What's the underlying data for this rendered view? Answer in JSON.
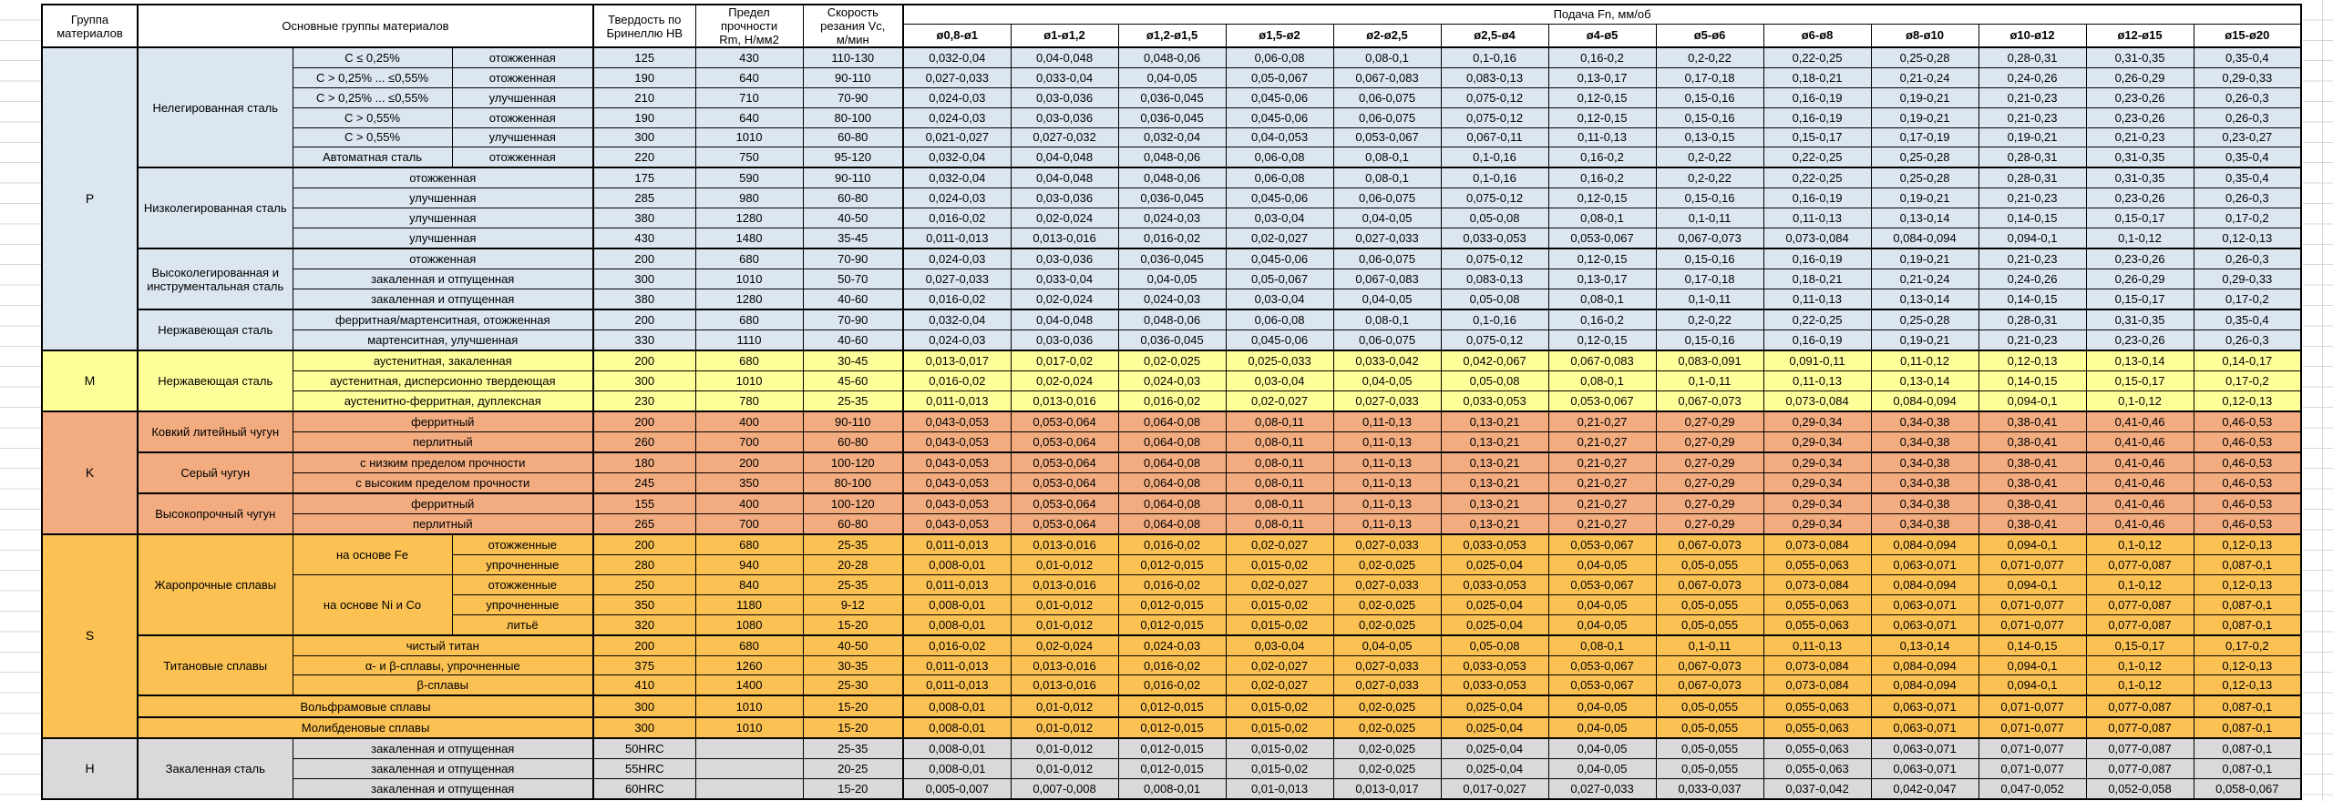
{
  "table": {
    "headers": {
      "group": "Группа\nматериалов",
      "materials": "Основные группы материалов",
      "hardness": "Твердость по\nБринеллю HB",
      "strength": "Предел\nпрочности\nRm, Н/мм2",
      "speed": "Скорость\nрезания Vc,\nм/мин",
      "feed_title": "Подача Fn, мм/об"
    },
    "feed_columns": [
      "ø0,8-ø1",
      "ø1-ø1,2",
      "ø1,2-ø1,5",
      "ø1,5-ø2",
      "ø2-ø2,5",
      "ø2,5-ø4",
      "ø4-ø5",
      "ø5-ø6",
      "ø6-ø8",
      "ø8-ø10",
      "ø10-ø12",
      "ø12-ø15",
      "ø15-ø20"
    ],
    "feed_patterns": {
      "A": [
        "0,032-0,04",
        "0,04-0,048",
        "0,048-0,06",
        "0,06-0,08",
        "0,08-0,1",
        "0,1-0,16",
        "0,16-0,2",
        "0,2-0,22",
        "0,22-0,25",
        "0,25-0,28",
        "0,28-0,31",
        "0,31-0,35",
        "0,35-0,4"
      ],
      "B": [
        "0,027-0,033",
        "0,033-0,04",
        "0,04-0,05",
        "0,05-0,067",
        "0,067-0,083",
        "0,083-0,13",
        "0,13-0,17",
        "0,17-0,18",
        "0,18-0,21",
        "0,21-0,24",
        "0,24-0,26",
        "0,26-0,29",
        "0,29-0,33"
      ],
      "C": [
        "0,024-0,03",
        "0,03-0,036",
        "0,036-0,045",
        "0,045-0,06",
        "0,06-0,075",
        "0,075-0,12",
        "0,12-0,15",
        "0,15-0,16",
        "0,16-0,19",
        "0,19-0,21",
        "0,21-0,23",
        "0,23-0,26",
        "0,26-0,3"
      ],
      "D": [
        "0,021-0,027",
        "0,027-0,032",
        "0,032-0,04",
        "0,04-0,053",
        "0,053-0,067",
        "0,067-0,11",
        "0,11-0,13",
        "0,13-0,15",
        "0,15-0,17",
        "0,17-0,19",
        "0,19-0,21",
        "0,21-0,23",
        "0,23-0,27"
      ],
      "E": [
        "0,016-0,02",
        "0,02-0,024",
        "0,024-0,03",
        "0,03-0,04",
        "0,04-0,05",
        "0,05-0,08",
        "0,08-0,1",
        "0,1-0,11",
        "0,11-0,13",
        "0,13-0,14",
        "0,14-0,15",
        "0,15-0,17",
        "0,17-0,2"
      ],
      "F": [
        "0,011-0,013",
        "0,013-0,016",
        "0,016-0,02",
        "0,02-0,027",
        "0,027-0,033",
        "0,033-0,053",
        "0,053-0,067",
        "0,067-0,073",
        "0,073-0,084",
        "0,084-0,094",
        "0,094-0,1",
        "0,1-0,12",
        "0,12-0,13"
      ],
      "G": [
        "0,013-0,017",
        "0,017-0,02",
        "0,02-0,025",
        "0,025-0,033",
        "0,033-0,042",
        "0,042-0,067",
        "0,067-0,083",
        "0,083-0,091",
        "0,091-0,11",
        "0,11-0,12",
        "0,12-0,13",
        "0,13-0,14",
        "0,14-0,17"
      ],
      "K": [
        "0,043-0,053",
        "0,053-0,064",
        "0,064-0,08",
        "0,08-0,11",
        "0,11-0,13",
        "0,13-0,21",
        "0,21-0,27",
        "0,27-0,29",
        "0,29-0,34",
        "0,34-0,38",
        "0,38-0,41",
        "0,41-0,46",
        "0,46-0,53"
      ],
      "S": [
        "0,008-0,01",
        "0,01-0,012",
        "0,012-0,015",
        "0,015-0,02",
        "0,02-0,025",
        "0,025-0,04",
        "0,04-0,05",
        "0,05-0,055",
        "0,055-0,063",
        "0,063-0,071",
        "0,071-0,077",
        "0,077-0,087",
        "0,087-0,1"
      ],
      "H": [
        "0,005-0,007",
        "0,007-0,008",
        "0,008-0,01",
        "0,01-0,013",
        "0,013-0,017",
        "0,017-0,027",
        "0,027-0,033",
        "0,033-0,037",
        "0,037-0,042",
        "0,042-0,047",
        "0,047-0,052",
        "0,052-0,058",
        "0,058-0,067"
      ]
    },
    "groups": [
      {
        "letter": "P",
        "color": "#dce6f1",
        "materials": [
          {
            "name": "Нелегированная сталь",
            "rows": [
              {
                "subtype": "C ≤ 0,25%",
                "condition": "отожженная",
                "hb": "125",
                "rm": "430",
                "vc": "110-130",
                "feeds": "A"
              },
              {
                "subtype": "C > 0,25% ... ≤0,55%",
                "condition": "отожженная",
                "hb": "190",
                "rm": "640",
                "vc": "90-110",
                "feeds": "B"
              },
              {
                "subtype": "C > 0,25% ... ≤0,55%",
                "condition": "улучшенная",
                "hb": "210",
                "rm": "710",
                "vc": "70-90",
                "feeds": "C"
              },
              {
                "subtype": "C > 0,55%",
                "condition": "отожженная",
                "hb": "190",
                "rm": "640",
                "vc": "80-100",
                "feeds": "C"
              },
              {
                "subtype": "C > 0,55%",
                "condition": "улучшенная",
                "hb": "300",
                "rm": "1010",
                "vc": "60-80",
                "feeds": "D"
              },
              {
                "subtype": "Автоматная сталь",
                "condition": "отожженная",
                "hb": "220",
                "rm": "750",
                "vc": "95-120",
                "feeds": "A"
              }
            ]
          },
          {
            "name": "Низколегированная сталь",
            "rows": [
              {
                "merged": "отожженная",
                "hb": "175",
                "rm": "590",
                "vc": "90-110",
                "feeds": "A"
              },
              {
                "merged": "улучшенная",
                "hb": "285",
                "rm": "980",
                "vc": "60-80",
                "feeds": "C"
              },
              {
                "merged": "улучшенная",
                "hb": "380",
                "rm": "1280",
                "vc": "40-50",
                "feeds": "E"
              },
              {
                "merged": "улучшенная",
                "hb": "430",
                "rm": "1480",
                "vc": "35-45",
                "feeds": "F"
              }
            ]
          },
          {
            "name": "Высоколегированная и инструментальная сталь",
            "rows": [
              {
                "merged": "отожженная",
                "hb": "200",
                "rm": "680",
                "vc": "70-90",
                "feeds": "C"
              },
              {
                "merged": "закаленная и отпущенная",
                "hb": "300",
                "rm": "1010",
                "vc": "50-70",
                "feeds": "B"
              },
              {
                "merged": "закаленная и отпущенная",
                "hb": "380",
                "rm": "1280",
                "vc": "40-60",
                "feeds": "E"
              }
            ]
          },
          {
            "name": "Нержавеющая сталь",
            "rows": [
              {
                "merged": "ферритная/мартенситная, отожженная",
                "hb": "200",
                "rm": "680",
                "vc": "70-90",
                "feeds": "A"
              },
              {
                "merged": "мартенситная, улучшенная",
                "hb": "330",
                "rm": "1110",
                "vc": "40-60",
                "feeds": "C"
              }
            ]
          }
        ]
      },
      {
        "letter": "M",
        "color": "#ffff99",
        "materials": [
          {
            "name": "Нержавеющая сталь",
            "rows": [
              {
                "merged": "аустенитная, закаленная",
                "hb": "200",
                "rm": "680",
                "vc": "30-45",
                "feeds": "G"
              },
              {
                "merged": "аустенитная, дисперсионно твердеющая",
                "hb": "300",
                "rm": "1010",
                "vc": "45-60",
                "feeds": "E"
              },
              {
                "merged": "аустенитно-ферритная, дуплексная",
                "hb": "230",
                "rm": "780",
                "vc": "25-35",
                "feeds": "F"
              }
            ]
          }
        ]
      },
      {
        "letter": "K",
        "color": "#f2ac80",
        "materials": [
          {
            "name": "Ковкий литейный чугун",
            "rows": [
              {
                "merged": "ферритный",
                "hb": "200",
                "rm": "400",
                "vc": "90-110",
                "feeds": "K"
              },
              {
                "merged": "перлитный",
                "hb": "260",
                "rm": "700",
                "vc": "60-80",
                "feeds": "K"
              }
            ]
          },
          {
            "name": "Серый чугун",
            "rows": [
              {
                "merged": "с низким пределом прочности",
                "hb": "180",
                "rm": "200",
                "vc": "100-120",
                "feeds": "K"
              },
              {
                "merged": "с высоким пределом прочности",
                "hb": "245",
                "rm": "350",
                "vc": "80-100",
                "feeds": "K"
              }
            ]
          },
          {
            "name": "Высокопрочный чугун",
            "rows": [
              {
                "merged": "ферритный",
                "hb": "155",
                "rm": "400",
                "vc": "100-120",
                "feeds": "K"
              },
              {
                "merged": "перлитный",
                "hb": "265",
                "rm": "700",
                "vc": "60-80",
                "feeds": "K"
              }
            ]
          }
        ]
      },
      {
        "letter": "S",
        "color": "#fbc153",
        "materials": [
          {
            "name": "Жаропрочные сплавы",
            "rows": [
              {
                "subtype": "на основе Fe",
                "subtype_rows": 2,
                "condition": "отожженные",
                "hb": "200",
                "rm": "680",
                "vc": "25-35",
                "feeds": "F"
              },
              {
                "condition": "упрочненные",
                "hb": "280",
                "rm": "940",
                "vc": "20-28",
                "feeds": "S"
              },
              {
                "subtype": "на основе Ni и Co",
                "subtype_rows": 3,
                "condition": "отожженные",
                "hb": "250",
                "rm": "840",
                "vc": "25-35",
                "feeds": "F"
              },
              {
                "condition": "упрочненные",
                "hb": "350",
                "rm": "1180",
                "vc": "9-12",
                "feeds": "S"
              },
              {
                "condition": "литьё",
                "hb": "320",
                "rm": "1080",
                "vc": "15-20",
                "feeds": "S"
              }
            ]
          },
          {
            "name": "Титановые сплавы",
            "rows": [
              {
                "merged": "чистый титан",
                "hb": "200",
                "rm": "680",
                "vc": "40-50",
                "feeds": "E"
              },
              {
                "merged": "α- и β-сплавы, упрочненные",
                "hb": "375",
                "rm": "1260",
                "vc": "30-35",
                "feeds": "F"
              },
              {
                "merged": "β-сплавы",
                "hb": "410",
                "rm": "1400",
                "vc": "25-30",
                "feeds": "F"
              }
            ]
          },
          {
            "name": "Вольфрамовые сплавы",
            "full": true,
            "rows": [
              {
                "hb": "300",
                "rm": "1010",
                "vc": "15-20",
                "feeds": "S"
              }
            ]
          },
          {
            "name": "Молибденовые сплавы",
            "full": true,
            "rows": [
              {
                "hb": "300",
                "rm": "1010",
                "vc": "15-20",
                "feeds": "S"
              }
            ]
          }
        ]
      },
      {
        "letter": "H",
        "color": "#d9d9d9",
        "materials": [
          {
            "name": "Закаленная сталь",
            "rows": [
              {
                "merged": "закаленная и отпущенная",
                "hb": "50HRC",
                "rm": "",
                "vc": "25-35",
                "feeds": "S"
              },
              {
                "merged": "закаленная и отпущенная",
                "hb": "55HRC",
                "rm": "",
                "vc": "20-25",
                "feeds": "S"
              },
              {
                "merged": "закаленная и отпущенная",
                "hb": "60HRC",
                "rm": "",
                "vc": "15-20",
                "feeds": "H"
              }
            ]
          }
        ]
      }
    ]
  }
}
